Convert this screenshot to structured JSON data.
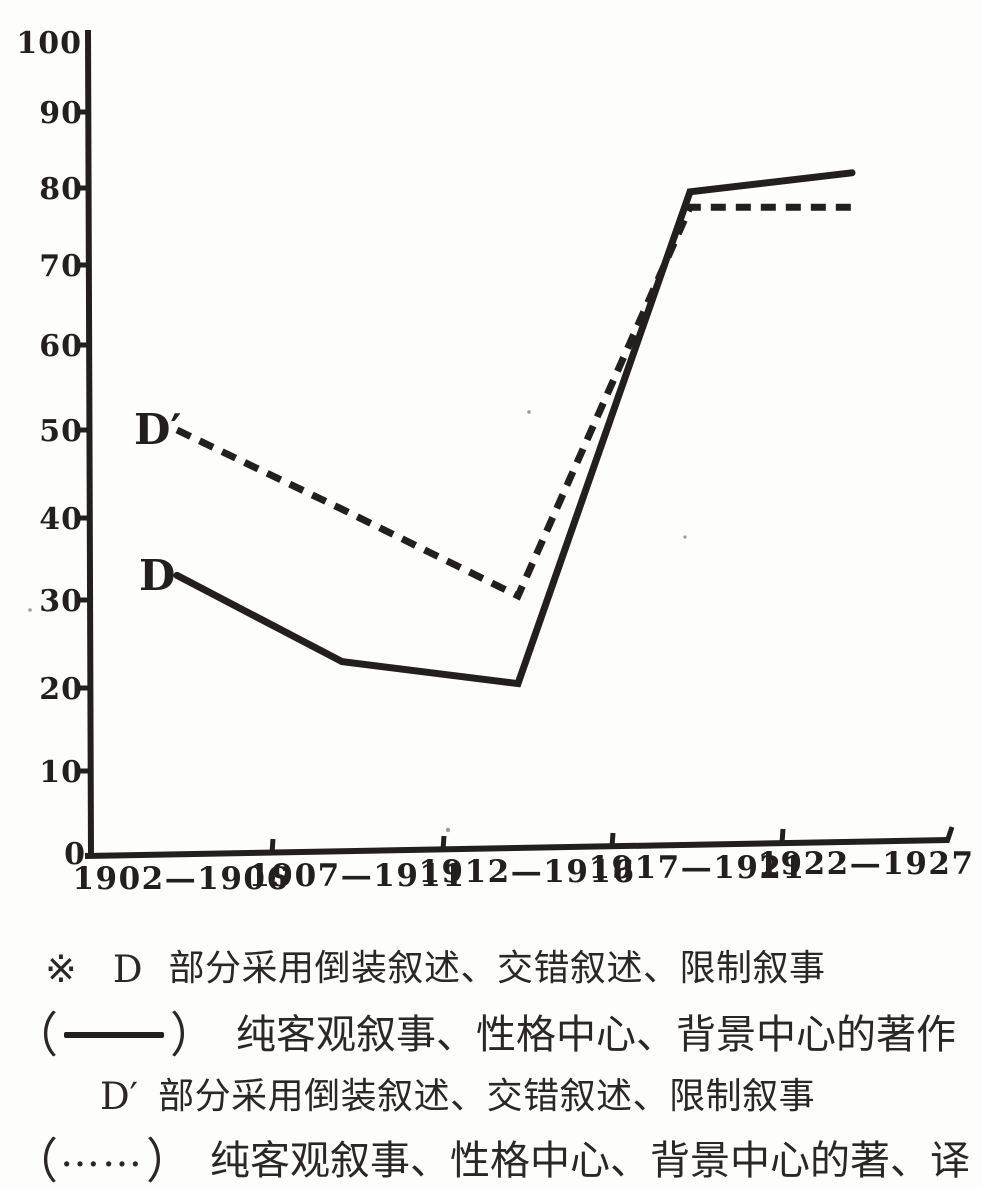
{
  "chart_data": {
    "type": "line",
    "title": "",
    "xlabel": "",
    "ylabel": "",
    "ylim": [
      0,
      100
    ],
    "grid": false,
    "legend_position": "below",
    "y_ticks": [
      0,
      10,
      20,
      30,
      40,
      50,
      60,
      70,
      80,
      90,
      100
    ],
    "categories": [
      "1902—1906",
      "1907—1911",
      "1912—1916",
      "1917—1921",
      "1922—1927"
    ],
    "series": [
      {
        "name": "D",
        "line_style": "solid",
        "values": [
          33,
          23,
          20.5,
          79.5,
          82
        ]
      },
      {
        "name": "D′",
        "line_style": "dashed",
        "values": [
          50,
          41,
          30.5,
          77.5,
          77.5
        ]
      }
    ]
  },
  "footnotes": {
    "row1": {
      "marker": "※",
      "key": "D",
      "text": "部分采用倒装叙述、交错叙述、限制叙事"
    },
    "row2": {
      "open": "（",
      "close": "）",
      "symbol": "solid-line",
      "text": "纯客观叙事、性格中心、背景中心的著作"
    },
    "row3": {
      "key": "D′",
      "text": "部分采用倒装叙述、交错叙述、限制叙事"
    },
    "row4": {
      "open": "（",
      "dots": "……",
      "close": "）",
      "text": "纯客观叙事、性格中心、背景中心的著、译"
    }
  },
  "colors": {
    "ink": "#221f1c",
    "paper": "#fdfdfb"
  }
}
